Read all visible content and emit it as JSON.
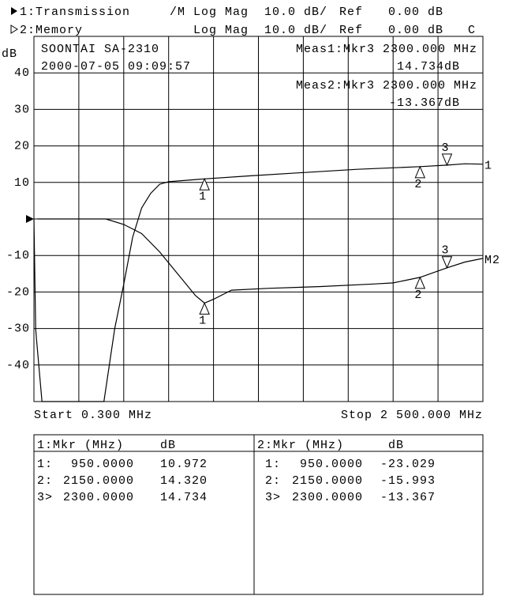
{
  "header": {
    "lines": [
      [
        "1:Transmission",
        "/M",
        "Log Mag",
        "10.0 dB/",
        "Ref",
        "0.00 dB"
      ],
      [
        "2:Memory",
        "Log Mag",
        "10.0 dB/",
        "Ref",
        "0.00 dB",
        "C"
      ]
    ]
  },
  "instrument": "SOONTAI SA-2310",
  "timestamp": "2000-07-05 09:09:57",
  "measurements": [
    {
      "label": "Meas1:Mkr3 2300.000 MHz",
      "value": "14.734dB"
    },
    {
      "label": "Meas2:Mkr3 2300.000 MHz",
      "value": "-13.367dB"
    }
  ],
  "chart_data": {
    "type": "line",
    "ylabel": "dB",
    "start_label": "Start 0.300 MHz",
    "stop_label": "Stop 2 500.000 MHz",
    "xlim": [
      0.3,
      2500
    ],
    "ylim": [
      -50,
      50
    ],
    "yticks": [
      -40,
      -30,
      -20,
      -10,
      10,
      20,
      30,
      40
    ],
    "grid": true,
    "series": [
      {
        "name": "1",
        "color": "#000000",
        "x": [
          0.3,
          10,
          15,
          45,
          390,
          450,
          500,
          550,
          600,
          650,
          700,
          750,
          800,
          950,
          1200,
          1500,
          1800,
          2150,
          2300,
          2400,
          2500
        ],
        "values": [
          0,
          -30,
          -33,
          -50,
          -50,
          -30,
          -18,
          -5,
          3,
          7,
          9.5,
          10.2,
          10.4,
          10.972,
          11.8,
          12.7,
          13.6,
          14.32,
          14.734,
          15.1,
          15
        ],
        "markers": {
          "x": [
            950,
            2150,
            2300
          ],
          "values": [
            10.972,
            14.32,
            14.734
          ],
          "labels": [
            "1",
            "2",
            "3"
          ]
        }
      },
      {
        "name": "M2",
        "color": "#000000",
        "x": [
          20,
          400,
          500,
          600,
          700,
          800,
          900,
          950,
          1000,
          1100,
          1300,
          1600,
          1900,
          2000,
          2150,
          2300,
          2400,
          2500
        ],
        "values": [
          0,
          0,
          -1.5,
          -4,
          -9,
          -15,
          -21,
          -23.029,
          -22,
          -19.5,
          -19,
          -18.5,
          -17.8,
          -17.5,
          -15.993,
          -13.367,
          -11.8,
          -10.8
        ],
        "markers": {
          "x": [
            950,
            2150,
            2300
          ],
          "values": [
            -23.029,
            -15.993,
            -13.367
          ],
          "labels": [
            "1",
            "2",
            "3"
          ]
        }
      }
    ]
  },
  "marker_table": {
    "panels": [
      {
        "header": [
          "1:Mkr (MHz)",
          "dB"
        ],
        "rows": [
          [
            "1:",
            "950.0000",
            "10.972"
          ],
          [
            "2:",
            "2150.0000",
            "14.320"
          ],
          [
            "3>",
            "2300.0000",
            "14.734"
          ]
        ]
      },
      {
        "header": [
          "2:Mkr (MHz)",
          "dB"
        ],
        "rows": [
          [
            "1:",
            "950.0000",
            "-23.029"
          ],
          [
            "2:",
            "2150.0000",
            "-15.993"
          ],
          [
            "3>",
            "2300.0000",
            "-13.367"
          ]
        ]
      }
    ]
  }
}
